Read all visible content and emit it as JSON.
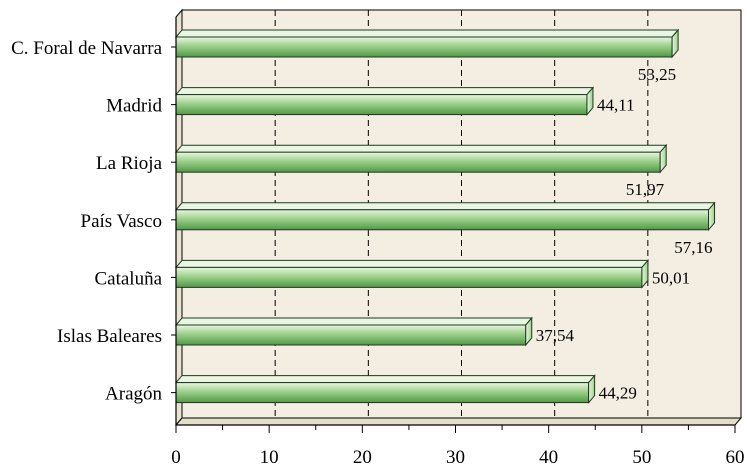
{
  "chart_data": {
    "type": "bar",
    "orientation": "horizontal",
    "title": "",
    "xlabel": "",
    "ylabel": "",
    "categories": [
      "C. Foral de Navarra",
      "Madrid",
      "La Rioja",
      "País Vasco",
      "Cataluña",
      "Islas Baleares",
      "Aragón"
    ],
    "values": [
      53.25,
      44.11,
      51.97,
      57.16,
      50.01,
      37.54,
      44.29
    ],
    "value_labels": [
      "53,25",
      "44,11",
      "51,97",
      "57,16",
      "50,01",
      "37,54",
      "44,29"
    ],
    "xlim": [
      0,
      60
    ],
    "x_ticks": [
      0,
      10,
      20,
      30,
      40,
      50,
      60
    ],
    "x_tick_labels": [
      "0",
      "10",
      "20",
      "30",
      "40",
      "50",
      "60"
    ],
    "grid": "vertical dashed",
    "legend": "none",
    "colors": {
      "plot_background": "#f3eee1",
      "bar_light": "#eaf6e3",
      "bar_mid": "#9ed08c",
      "bar_dark": "#4f9a45",
      "bar_outline": "#1f3a1d",
      "grid": "#000000"
    }
  }
}
